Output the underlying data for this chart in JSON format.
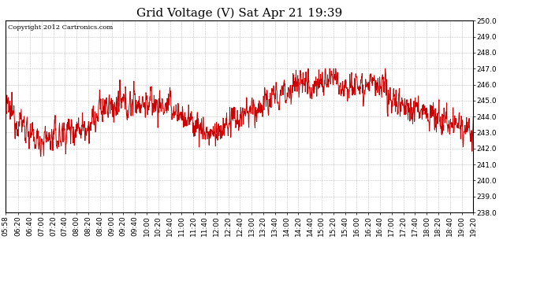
{
  "title": "Grid Voltage (V) Sat Apr 21 19:39",
  "copyright_text": "Copyright 2012 Cartronics.com",
  "ylim": [
    238.0,
    250.0
  ],
  "yticks": [
    238.0,
    239.0,
    240.0,
    241.0,
    242.0,
    243.0,
    244.0,
    245.0,
    246.0,
    247.0,
    248.0,
    249.0,
    250.0
  ],
  "line_color": "#cc0000",
  "background_color": "#ffffff",
  "grid_color": "#b0b0b0",
  "title_fontsize": 11,
  "tick_fontsize": 6.5,
  "time_labels": [
    "05:58",
    "06:20",
    "06:40",
    "07:00",
    "07:20",
    "07:40",
    "08:00",
    "08:20",
    "08:40",
    "09:00",
    "09:20",
    "09:40",
    "10:00",
    "10:20",
    "10:40",
    "11:00",
    "11:20",
    "11:40",
    "12:00",
    "12:20",
    "12:40",
    "13:00",
    "13:20",
    "13:40",
    "14:00",
    "14:20",
    "14:40",
    "15:00",
    "15:20",
    "15:40",
    "16:00",
    "16:20",
    "16:40",
    "17:00",
    "17:20",
    "17:40",
    "18:00",
    "18:20",
    "18:40",
    "19:00",
    "19:20"
  ],
  "seed": 12345
}
